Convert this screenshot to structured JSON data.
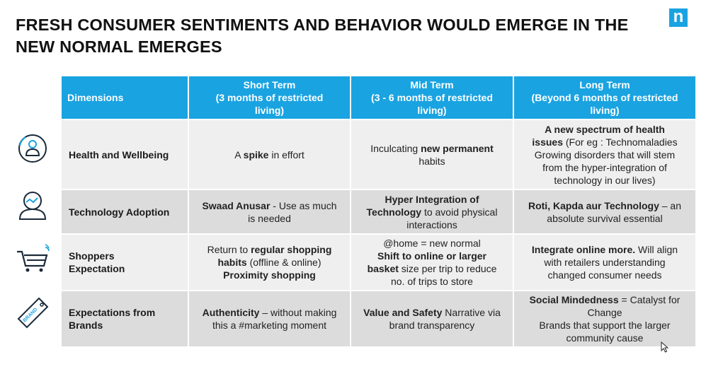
{
  "slide": {
    "title": "FRESH CONSUMER SENTIMENTS AND BEHAVIOR WOULD EMERGE IN THE NEW NORMAL EMERGES",
    "logo_letter": "n",
    "brand_color": "#1aa3e1"
  },
  "table": {
    "headers": {
      "dimensions": "Dimensions",
      "short": [
        "Short Term",
        "(3 months of restricted",
        "living)"
      ],
      "mid": [
        "Mid Term",
        "(3 - 6 months of restricted",
        "living)"
      ],
      "long": [
        "Long Term",
        "(Beyond 6 months of restricted",
        "living)"
      ]
    },
    "rows": [
      {
        "icon": "person-refresh-icon",
        "dimension": "Health  and Wellbeing",
        "short": {
          "a": "A ",
          "b": "spike",
          "c": " in  effort"
        },
        "mid": {
          "a": "Inculcating ",
          "b": "new permanent",
          "c": "habits"
        },
        "long": {
          "b1": "A new spectrum of  health",
          "b2": "issues",
          "a": " (For eg : Technomaladies",
          "l3": "Growing disorders that will stem",
          "l4": "from the hyper-integration  of",
          "l5": "technology  in our lives)"
        }
      },
      {
        "icon": "technology-person-icon",
        "dimension": "Technology Adoption",
        "short": {
          "b": "Swaad Anusar",
          "a": " - Use as much",
          "c": "is needed"
        },
        "mid": {
          "b1": "Hyper Integration of",
          "b2": "Technology",
          "a": " to avoid physical",
          "c": "interactions"
        },
        "long": {
          "b": "Roti, Kapda aur Technology",
          "a": " – an",
          "c": "absolute survival  essential"
        }
      },
      {
        "icon": "shopping-cart-icon",
        "dimension": "Shoppers Expectation",
        "dimension_lines": [
          "Shoppers",
          "Expectation"
        ],
        "short": {
          "a": "Return to ",
          "b": "regular shopping",
          "b2": "habits",
          "c": " (offline & online)",
          "b3": "Proximity  shopping"
        },
        "mid": {
          "a": "@home  = new normal",
          "b": "Shift to online or larger",
          "b2": "basket",
          "c": " size per trip to reduce",
          "d": "no. of trips to store"
        },
        "long": {
          "b": "Integrate online more.",
          "a": " Will align",
          "c": "with retailers understanding",
          "d": "changed consumer needs"
        }
      },
      {
        "icon": "brand-tag-icon",
        "dimension_lines": [
          "Expectations from",
          "Brands"
        ],
        "short": {
          "b": "Authenticity",
          "a": "  – without making",
          "c": "this a #marketing moment"
        },
        "mid": {
          "b": "Value and Safety",
          "a": " Narrative via",
          "c": "brand transparency"
        },
        "long": {
          "b": "Social Mindedness",
          "a": " = Catalyst for",
          "c": "Change",
          "d": "Brands that support the larger",
          "e": "community cause"
        }
      }
    ]
  },
  "icons": {
    "logo": "nielsen-logo-icon",
    "cursor": "mouse-pointer-icon",
    "brand_tag_text": "BRAND"
  }
}
